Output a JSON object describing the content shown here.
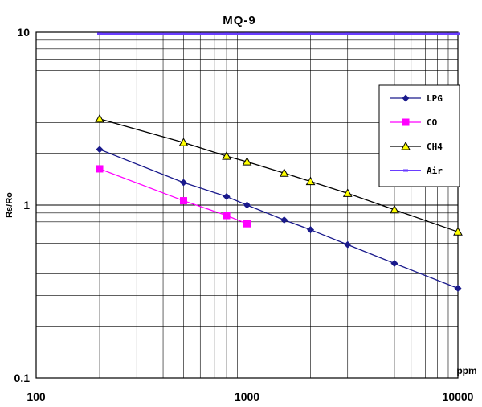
{
  "chart_data": {
    "type": "line",
    "title": "MQ-9",
    "xlabel": "ppm",
    "ylabel": "Rs/Ro",
    "x_scale": "log",
    "y_scale": "log",
    "xlim": [
      100,
      10000
    ],
    "ylim": [
      0.1,
      10
    ],
    "x_tick_labels": [
      "100",
      "1000",
      "10000"
    ],
    "y_tick_labels": [
      "0.1",
      "1",
      "10"
    ],
    "grid": true,
    "legend_position": "right",
    "series": [
      {
        "name": "LPG",
        "color": "#1a1a8c",
        "marker": "diamond",
        "x": [
          200,
          500,
          800,
          1000,
          1500,
          2000,
          3000,
          5000,
          10000
        ],
        "y": [
          2.1,
          1.35,
          1.12,
          1.0,
          0.82,
          0.72,
          0.59,
          0.46,
          0.33
        ]
      },
      {
        "name": "CO",
        "color": "#ff00ff",
        "marker": "square",
        "x": [
          200,
          500,
          800,
          1000
        ],
        "y": [
          1.62,
          1.06,
          0.87,
          0.78
        ]
      },
      {
        "name": "CH4",
        "color": "#000000",
        "marker": "triangle",
        "x": [
          200,
          500,
          800,
          1000,
          1500,
          2000,
          3000,
          5000,
          10000
        ],
        "y": [
          3.15,
          2.3,
          1.92,
          1.78,
          1.53,
          1.37,
          1.17,
          0.94,
          0.7
        ]
      },
      {
        "name": "Air",
        "color": "#6a3dff",
        "marker": "dash",
        "x": [
          200,
          500,
          800,
          1000,
          1500,
          2000,
          3000,
          5000,
          10000
        ],
        "y": [
          9.8,
          9.8,
          9.8,
          9.8,
          9.8,
          9.8,
          9.8,
          9.8,
          9.8
        ]
      }
    ]
  }
}
